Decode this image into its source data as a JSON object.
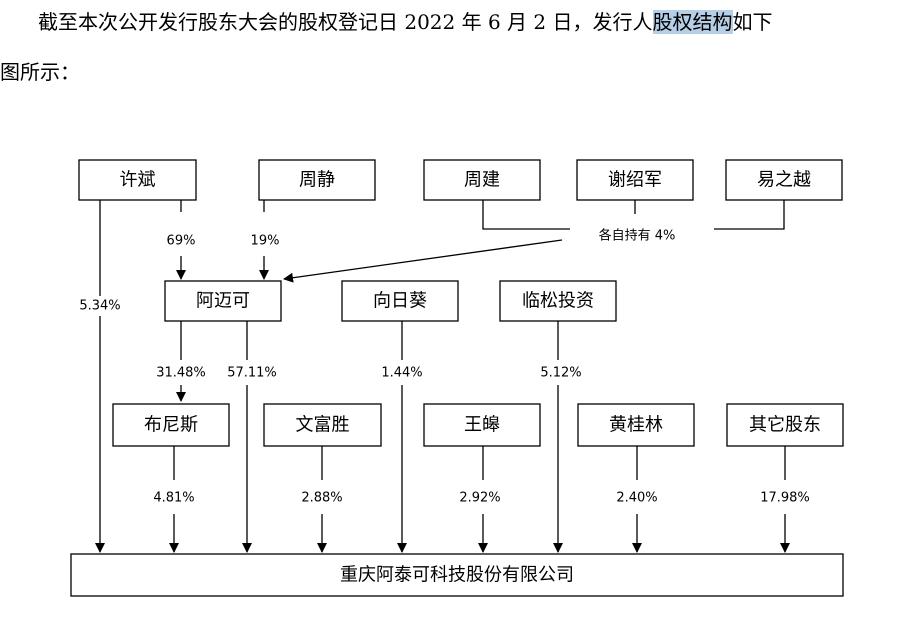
{
  "paragraph": {
    "line1_prefix": "截至本次公开发行股东大会的股权登记日 2022 年 6 月 2 日，发行人",
    "line1_highlight": "股权结构",
    "line1_suffix": "如下",
    "line2": "图所示："
  },
  "diagram": {
    "nodes": {
      "xubin": "许斌",
      "zhoujing": "周静",
      "zhoujian": "周建",
      "xieshaojun": "谢绍军",
      "yizhiyue": "易之越",
      "amaike": "阿迈可",
      "xiangrikui": "向日葵",
      "linsong": "临松投资",
      "bunisi": "布尼斯",
      "wenfusheng": "文富胜",
      "wanghao": "王皞",
      "huangguilin": "黄桂林",
      "others": "其它股东",
      "company": "重庆阿泰可科技股份有限公司"
    },
    "edges": {
      "xubin_amaike": "69%",
      "zhoujing_amaike": "19%",
      "group_each": "各自持有 4%",
      "xubin_company": "5.34%",
      "amaike_bunisi": "31.48%",
      "amaike_company": "57.11%",
      "xiangrikui_company": "1.44%",
      "linsong_company": "5.12%",
      "bunisi_company": "4.81%",
      "wenfusheng_company": "2.88%",
      "wanghao_company": "2.92%",
      "huangguilin_company": "2.40%",
      "others_company": "17.98%"
    }
  }
}
